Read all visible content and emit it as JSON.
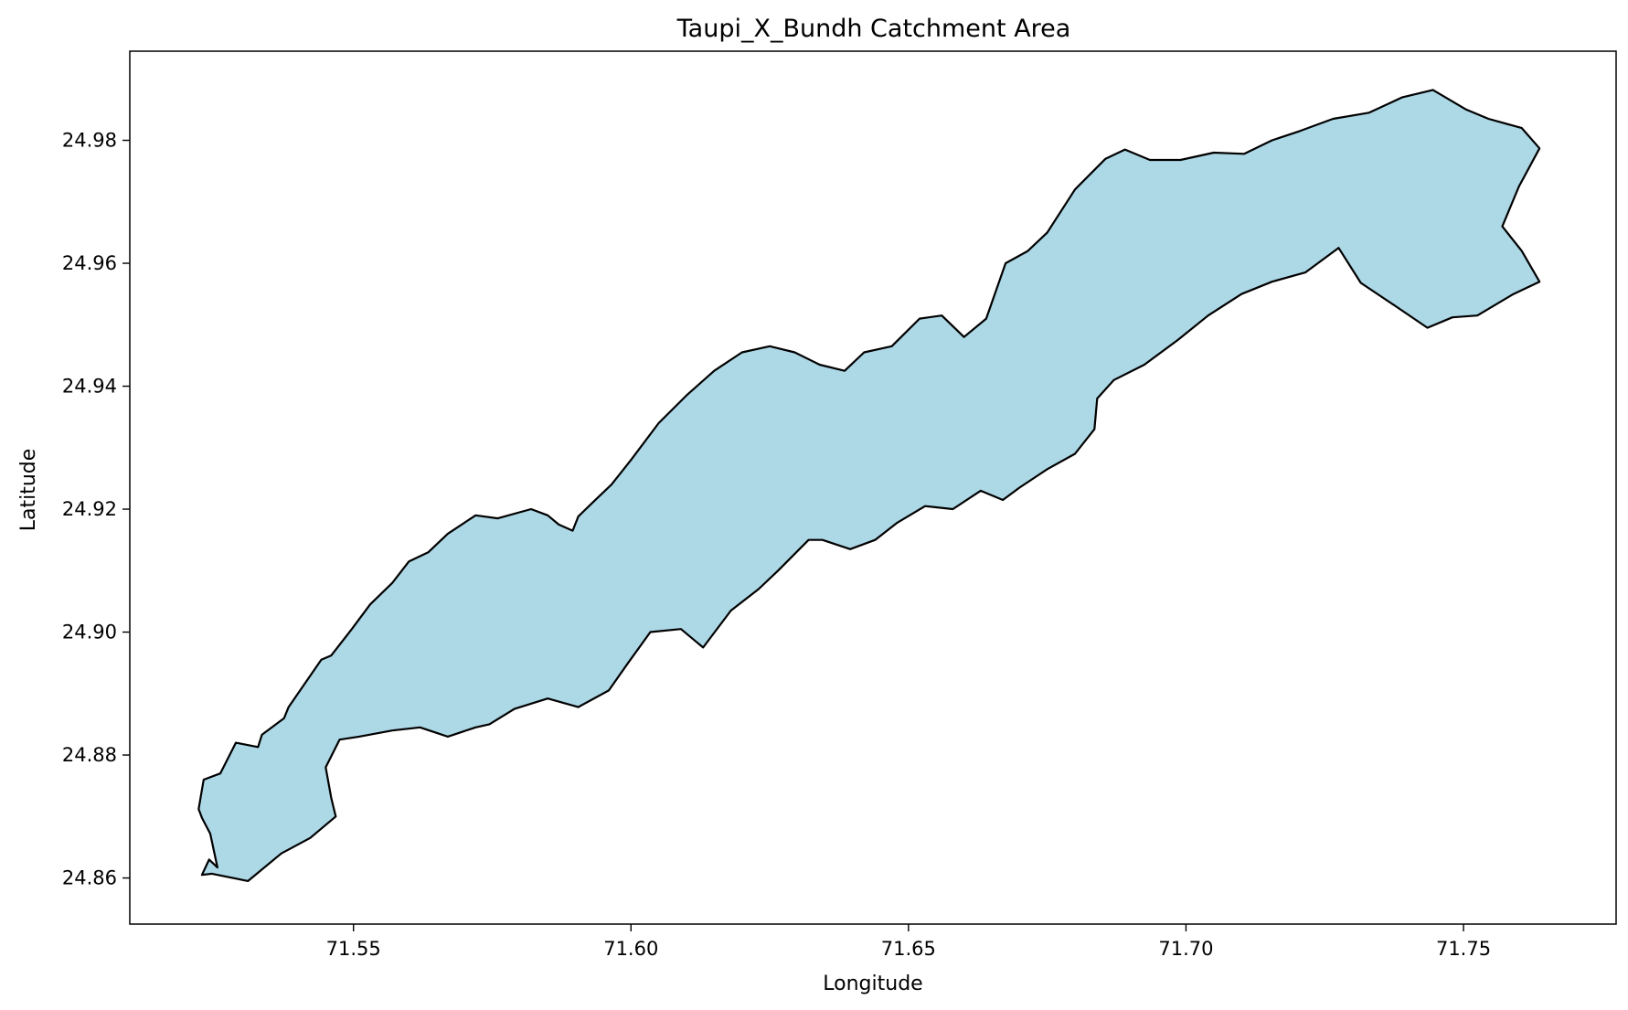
{
  "chart_data": {
    "type": "map",
    "title": "Taupi_X_Bundh Catchment Area",
    "xlabel": "Longitude",
    "ylabel": "Latitude",
    "xlim": [
      71.5097,
      71.7775
    ],
    "ylim": [
      24.8525,
      24.9945
    ],
    "x_ticks": [
      71.55,
      71.6,
      71.65,
      71.7,
      71.75
    ],
    "x_tick_labels": [
      "71.55",
      "71.60",
      "71.65",
      "71.70",
      "71.75"
    ],
    "y_ticks": [
      24.86,
      24.88,
      24.9,
      24.92,
      24.94,
      24.96,
      24.98
    ],
    "y_tick_labels": [
      "24.86",
      "24.88",
      "24.90",
      "24.92",
      "24.94",
      "24.96",
      "24.98"
    ],
    "grid": false,
    "fill_color": "#add8e6",
    "edge_color": "#000000",
    "catchment_boundary": [
      [
        71.5227,
        24.8605
      ],
      [
        71.524,
        24.863
      ],
      [
        71.5255,
        24.8617
      ],
      [
        71.5242,
        24.8672
      ],
      [
        71.5227,
        24.8698
      ],
      [
        71.5221,
        24.8712
      ],
      [
        71.523,
        24.876
      ],
      [
        71.526,
        24.877
      ],
      [
        71.5288,
        24.882
      ],
      [
        71.5328,
        24.8813
      ],
      [
        71.5335,
        24.8833
      ],
      [
        71.5375,
        24.886
      ],
      [
        71.5383,
        24.8878
      ],
      [
        71.5442,
        24.8955
      ],
      [
        71.546,
        24.8962
      ],
      [
        71.5497,
        24.9005
      ],
      [
        71.553,
        24.9045
      ],
      [
        71.557,
        24.908
      ],
      [
        71.56,
        24.9115
      ],
      [
        71.5635,
        24.913
      ],
      [
        71.567,
        24.916
      ],
      [
        71.572,
        24.919
      ],
      [
        71.576,
        24.9185
      ],
      [
        71.582,
        24.92
      ],
      [
        71.585,
        24.919
      ],
      [
        71.587,
        24.9175
      ],
      [
        71.5895,
        24.9165
      ],
      [
        71.5905,
        24.9188
      ],
      [
        71.593,
        24.921
      ],
      [
        71.5965,
        24.924
      ],
      [
        71.6,
        24.928
      ],
      [
        71.605,
        24.934
      ],
      [
        71.61,
        24.9385
      ],
      [
        71.615,
        24.9425
      ],
      [
        71.62,
        24.9455
      ],
      [
        71.625,
        24.9465
      ],
      [
        71.6295,
        24.9455
      ],
      [
        71.634,
        24.9435
      ],
      [
        71.6385,
        24.9425
      ],
      [
        71.642,
        24.9455
      ],
      [
        71.647,
        24.9465
      ],
      [
        71.652,
        24.951
      ],
      [
        71.656,
        24.9515
      ],
      [
        71.66,
        24.948
      ],
      [
        71.664,
        24.951
      ],
      [
        71.6675,
        24.96
      ],
      [
        71.6715,
        24.962
      ],
      [
        71.675,
        24.965
      ],
      [
        71.68,
        24.972
      ],
      [
        71.6855,
        24.977
      ],
      [
        71.689,
        24.9785
      ],
      [
        71.6935,
        24.9768
      ],
      [
        71.699,
        24.9768
      ],
      [
        71.705,
        24.978
      ],
      [
        71.7105,
        24.9778
      ],
      [
        71.7155,
        24.98
      ],
      [
        71.7205,
        24.9815
      ],
      [
        71.7265,
        24.9835
      ],
      [
        71.733,
        24.9845
      ],
      [
        71.739,
        24.987
      ],
      [
        71.7445,
        24.9882
      ],
      [
        71.7505,
        24.985
      ],
      [
        71.7545,
        24.9835
      ],
      [
        71.7605,
        24.982
      ],
      [
        71.7637,
        24.9787
      ],
      [
        71.76,
        24.9725
      ],
      [
        71.757,
        24.966
      ],
      [
        71.7605,
        24.962
      ],
      [
        71.7637,
        24.957
      ],
      [
        71.759,
        24.955
      ],
      [
        71.7525,
        24.9515
      ],
      [
        71.748,
        24.9512
      ],
      [
        71.7435,
        24.9495
      ],
      [
        71.7378,
        24.953
      ],
      [
        71.7315,
        24.9568
      ],
      [
        71.7275,
        24.9625
      ],
      [
        71.7215,
        24.9585
      ],
      [
        71.7155,
        24.957
      ],
      [
        71.71,
        24.955
      ],
      [
        71.704,
        24.9515
      ],
      [
        71.6985,
        24.9475
      ],
      [
        71.6925,
        24.9435
      ],
      [
        71.687,
        24.941
      ],
      [
        71.684,
        24.938
      ],
      [
        71.6835,
        24.933
      ],
      [
        71.68,
        24.929
      ],
      [
        71.675,
        24.9265
      ],
      [
        71.67,
        24.9235
      ],
      [
        71.667,
        24.9215
      ],
      [
        71.663,
        24.923
      ],
      [
        71.658,
        24.92
      ],
      [
        71.653,
        24.9205
      ],
      [
        71.648,
        24.9178
      ],
      [
        71.644,
        24.915
      ],
      [
        71.6395,
        24.9135
      ],
      [
        71.6345,
        24.915
      ],
      [
        71.632,
        24.915
      ],
      [
        71.6265,
        24.91
      ],
      [
        71.623,
        24.907
      ],
      [
        71.618,
        24.9035
      ],
      [
        71.613,
        24.8975
      ],
      [
        71.609,
        24.9005
      ],
      [
        71.6035,
        24.9
      ],
      [
        71.5995,
        24.895
      ],
      [
        71.596,
        24.8905
      ],
      [
        71.5905,
        24.8878
      ],
      [
        71.585,
        24.8892
      ],
      [
        71.579,
        24.8875
      ],
      [
        71.5745,
        24.885
      ],
      [
        71.572,
        24.8845
      ],
      [
        71.567,
        24.883
      ],
      [
        71.562,
        24.8845
      ],
      [
        71.557,
        24.884
      ],
      [
        71.551,
        24.883
      ],
      [
        71.5475,
        24.8825
      ],
      [
        71.545,
        24.878
      ],
      [
        71.546,
        24.873
      ],
      [
        71.5468,
        24.87
      ],
      [
        71.5422,
        24.8665
      ],
      [
        71.537,
        24.864
      ],
      [
        71.531,
        24.8595
      ],
      [
        71.5245,
        24.8607
      ]
    ]
  }
}
